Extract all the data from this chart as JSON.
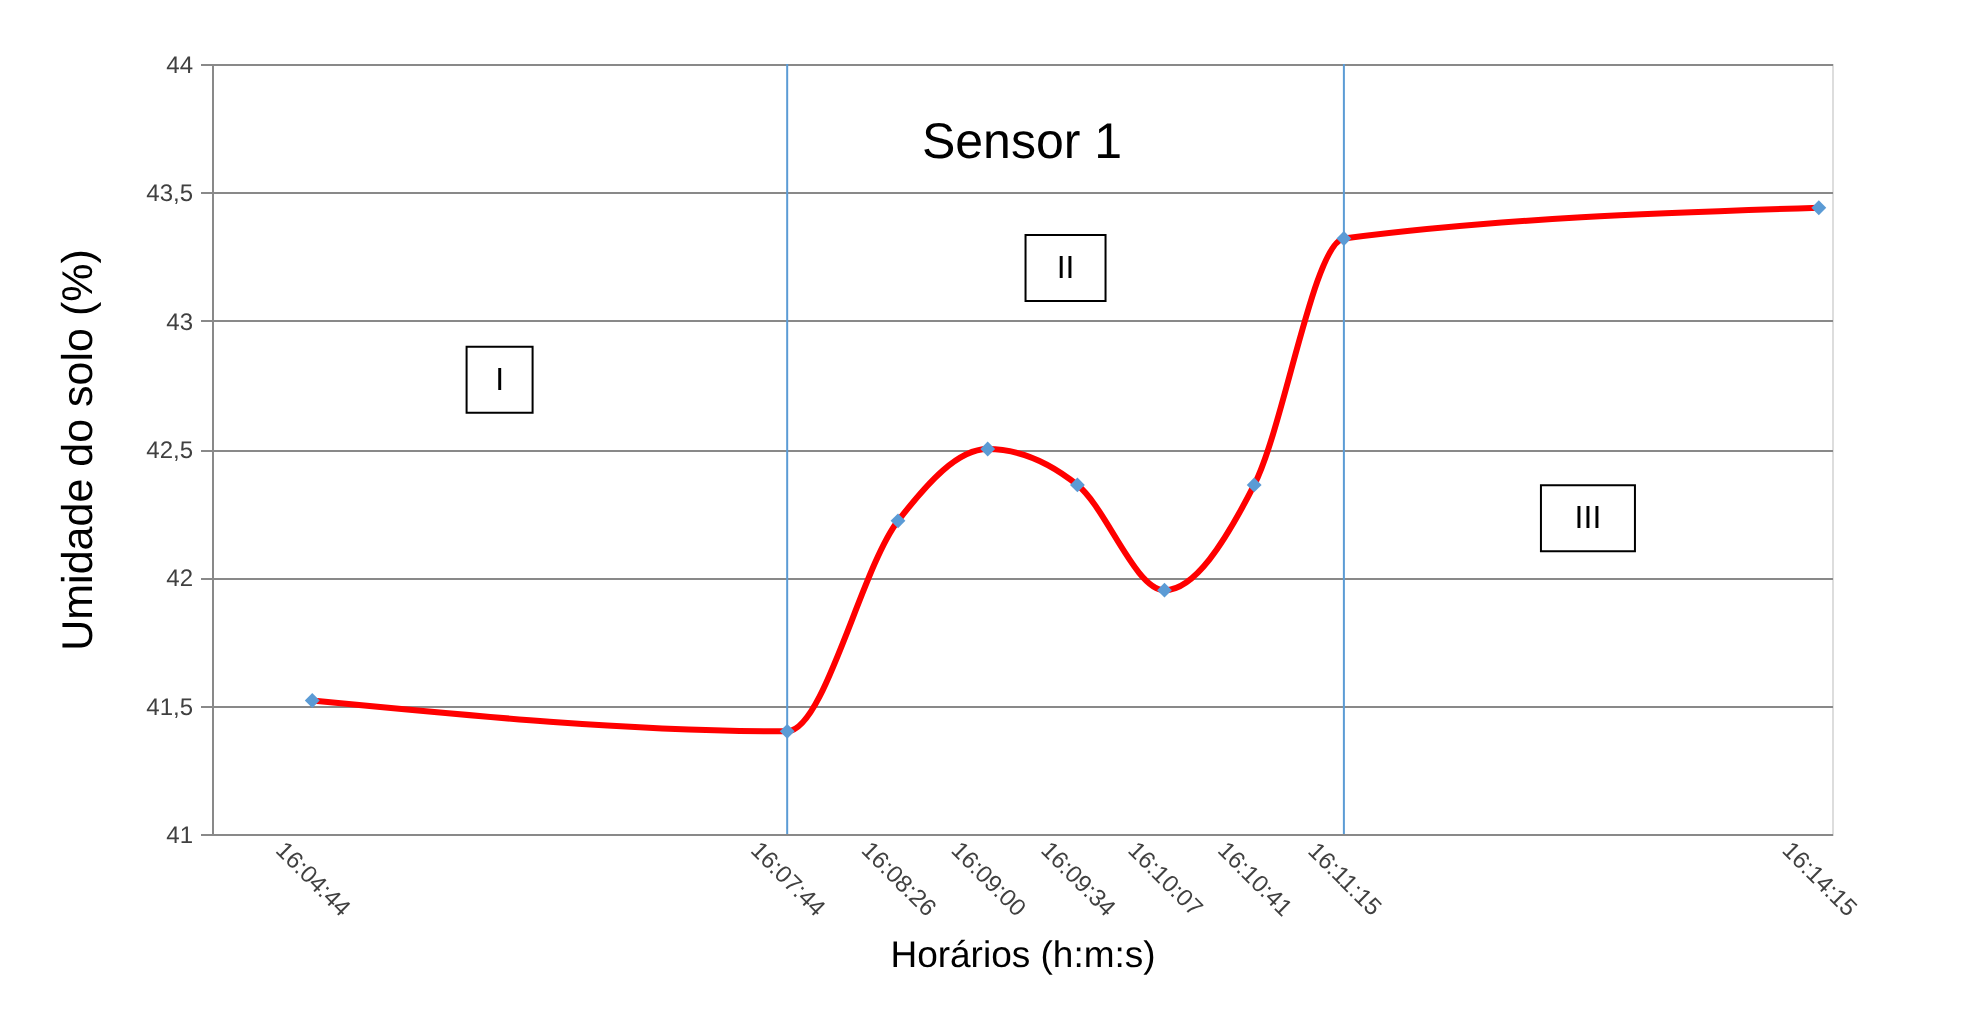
{
  "chart_data": {
    "type": "line",
    "title": "Sensor 1",
    "xlabel": "Horários (h:m:s)",
    "ylabel": "Umidade do solo (%)",
    "x": [
      16.078889,
      16.128889,
      16.140556,
      16.15,
      16.159444,
      16.168611,
      16.178056,
      16.1875,
      16.2375
    ],
    "series": [
      {
        "color": "#ff0000",
        "colors": [
          "#5b9bd5",
          "#5b9bd5",
          "#5b9bd5",
          "#5b9bd5",
          "#5b9bd5",
          "#5b9bd5",
          "#5b9bd5",
          "#5b9bd5",
          "#5b9bd5"
        ],
        "values": [
          41.52,
          41.4,
          42.22,
          42.5,
          42.36,
          41.95,
          42.36,
          43.32,
          43.44
        ]
      }
    ],
    "xlim": [
      16.068333,
      16.238889
    ],
    "xticks": [
      {
        "value": 16.078889,
        "label": "16:04:44"
      },
      {
        "value": 16.128889,
        "label": "16:07:44"
      },
      {
        "value": 16.140556,
        "label": "16:08:26"
      },
      {
        "value": 16.15,
        "label": "16:09:00"
      },
      {
        "value": 16.159444,
        "label": "16:09:34"
      },
      {
        "value": 16.168611,
        "label": "16:10:07"
      },
      {
        "value": 16.178056,
        "label": "16:10:41"
      },
      {
        "value": 16.1875,
        "label": "16:11:15"
      },
      {
        "value": 16.2375,
        "label": "16:14:15"
      }
    ],
    "ylim": [
      41,
      44
    ],
    "yticks": [
      {
        "value": 41,
        "label": "41"
      },
      {
        "value": 41.5,
        "label": "41,5"
      },
      {
        "value": 42,
        "label": "42"
      },
      {
        "value": 42.5,
        "label": "42,5"
      },
      {
        "value": 43,
        "label": "43"
      },
      {
        "value": 43.5,
        "label": "43,5"
      },
      {
        "value": 44,
        "label": "44"
      }
    ],
    "ref_lines": [
      {
        "axis": "x",
        "value": 16.128889,
        "color": "#5b9bd5"
      },
      {
        "axis": "x",
        "value": 16.1875,
        "color": "#5b9bd5"
      }
    ],
    "annotations": [
      "I",
      "II",
      "III"
    ],
    "grid": "y",
    "marker": "diamond",
    "line_style": "solid"
  }
}
